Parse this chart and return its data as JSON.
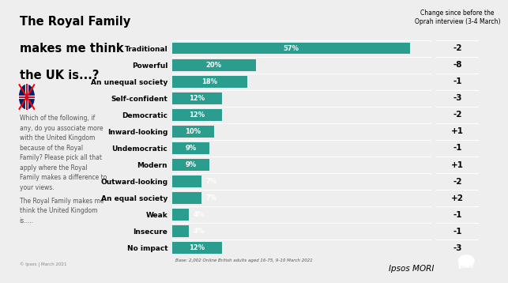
{
  "categories": [
    "Traditional",
    "Powerful",
    "An unequal society",
    "Self-confident",
    "Democratic",
    "Inward-looking",
    "Undemocratic",
    "Modern",
    "Outward-looking",
    "An equal society",
    "Weak",
    "Insecure",
    "No impact"
  ],
  "values": [
    57,
    20,
    18,
    12,
    12,
    10,
    9,
    9,
    7,
    7,
    4,
    4,
    12
  ],
  "changes": [
    "-2",
    "-8",
    "-1",
    "-3",
    "-2",
    "+1",
    "-1",
    "+1",
    "-2",
    "+2",
    "-1",
    "-1",
    "-3"
  ],
  "bar_color": "#2a9d8f",
  "bg_color": "#eeeeee",
  "left_panel_color": "#ffffff",
  "title_line1": "The Royal Family",
  "title_line2": "makes me think",
  "title_line3": "the UK is...?",
  "body_text1": "Which of the following, if\nany, do you associate more\nwith the United Kingdom\nbecause of the Royal\nFamily? Please pick all that\napply where the Royal\nFamily makes a difference to\nyour views.",
  "body_text2": "The Royal Family makes me\nthink the United Kingdom\nis.....",
  "change_header": "Change since before the\nOprah interview (3-4 March)",
  "footer": "Base: 2,002 Online British adults aged 16-75, 9-10 March 2021",
  "copyright": "© Ipsos | March 2021",
  "bar_label_fontsize": 6,
  "category_fontsize": 6.5,
  "change_fontsize": 7.5,
  "title_fontsize": 10.5,
  "body_fontsize": 5.5,
  "header_fontsize": 5.5,
  "separator_color": "#ffffff",
  "grid_color": "#d8d8d8"
}
